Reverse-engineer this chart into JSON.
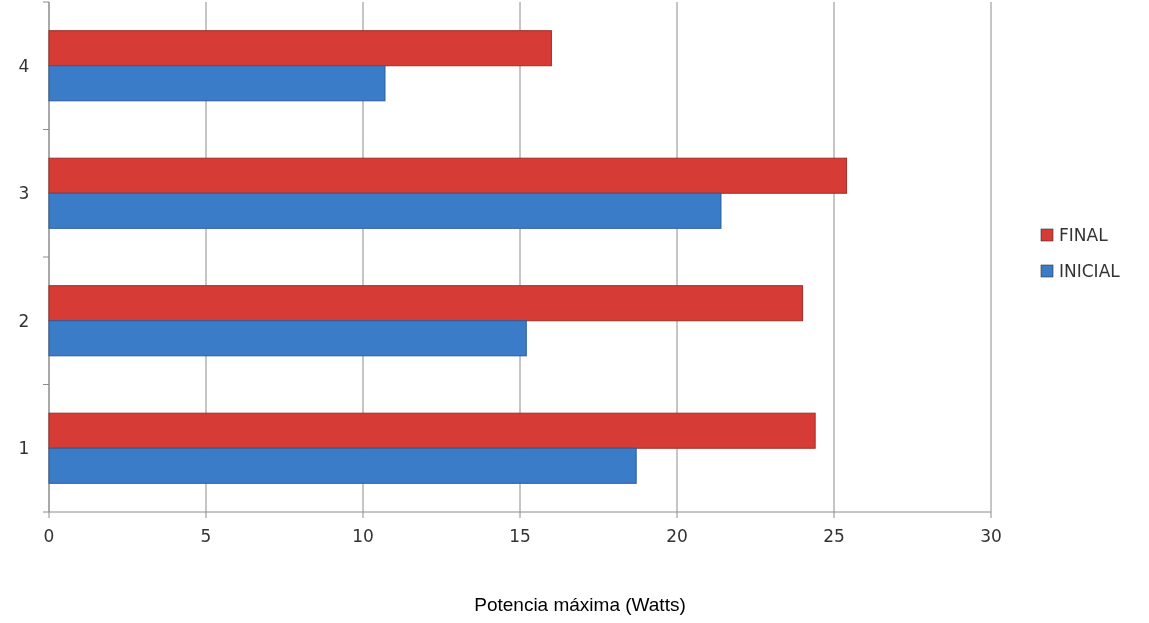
{
  "chart_data": {
    "type": "bar",
    "orientation": "horizontal",
    "xlabel": "Potencia máxima (Watts)",
    "categories": [
      "4",
      "3",
      "2",
      "1"
    ],
    "series": [
      {
        "name": "FINAL",
        "color": "#d63b35",
        "values": [
          16,
          25.4,
          24,
          24.4
        ]
      },
      {
        "name": "INICIAL",
        "color": "#3b7cc8",
        "values": [
          10.7,
          21.4,
          15.2,
          18.7
        ]
      }
    ],
    "xlim": [
      0,
      30
    ],
    "xticks": [
      0,
      5,
      10,
      15,
      20,
      25,
      30
    ],
    "grid": "x",
    "legend": "right"
  }
}
